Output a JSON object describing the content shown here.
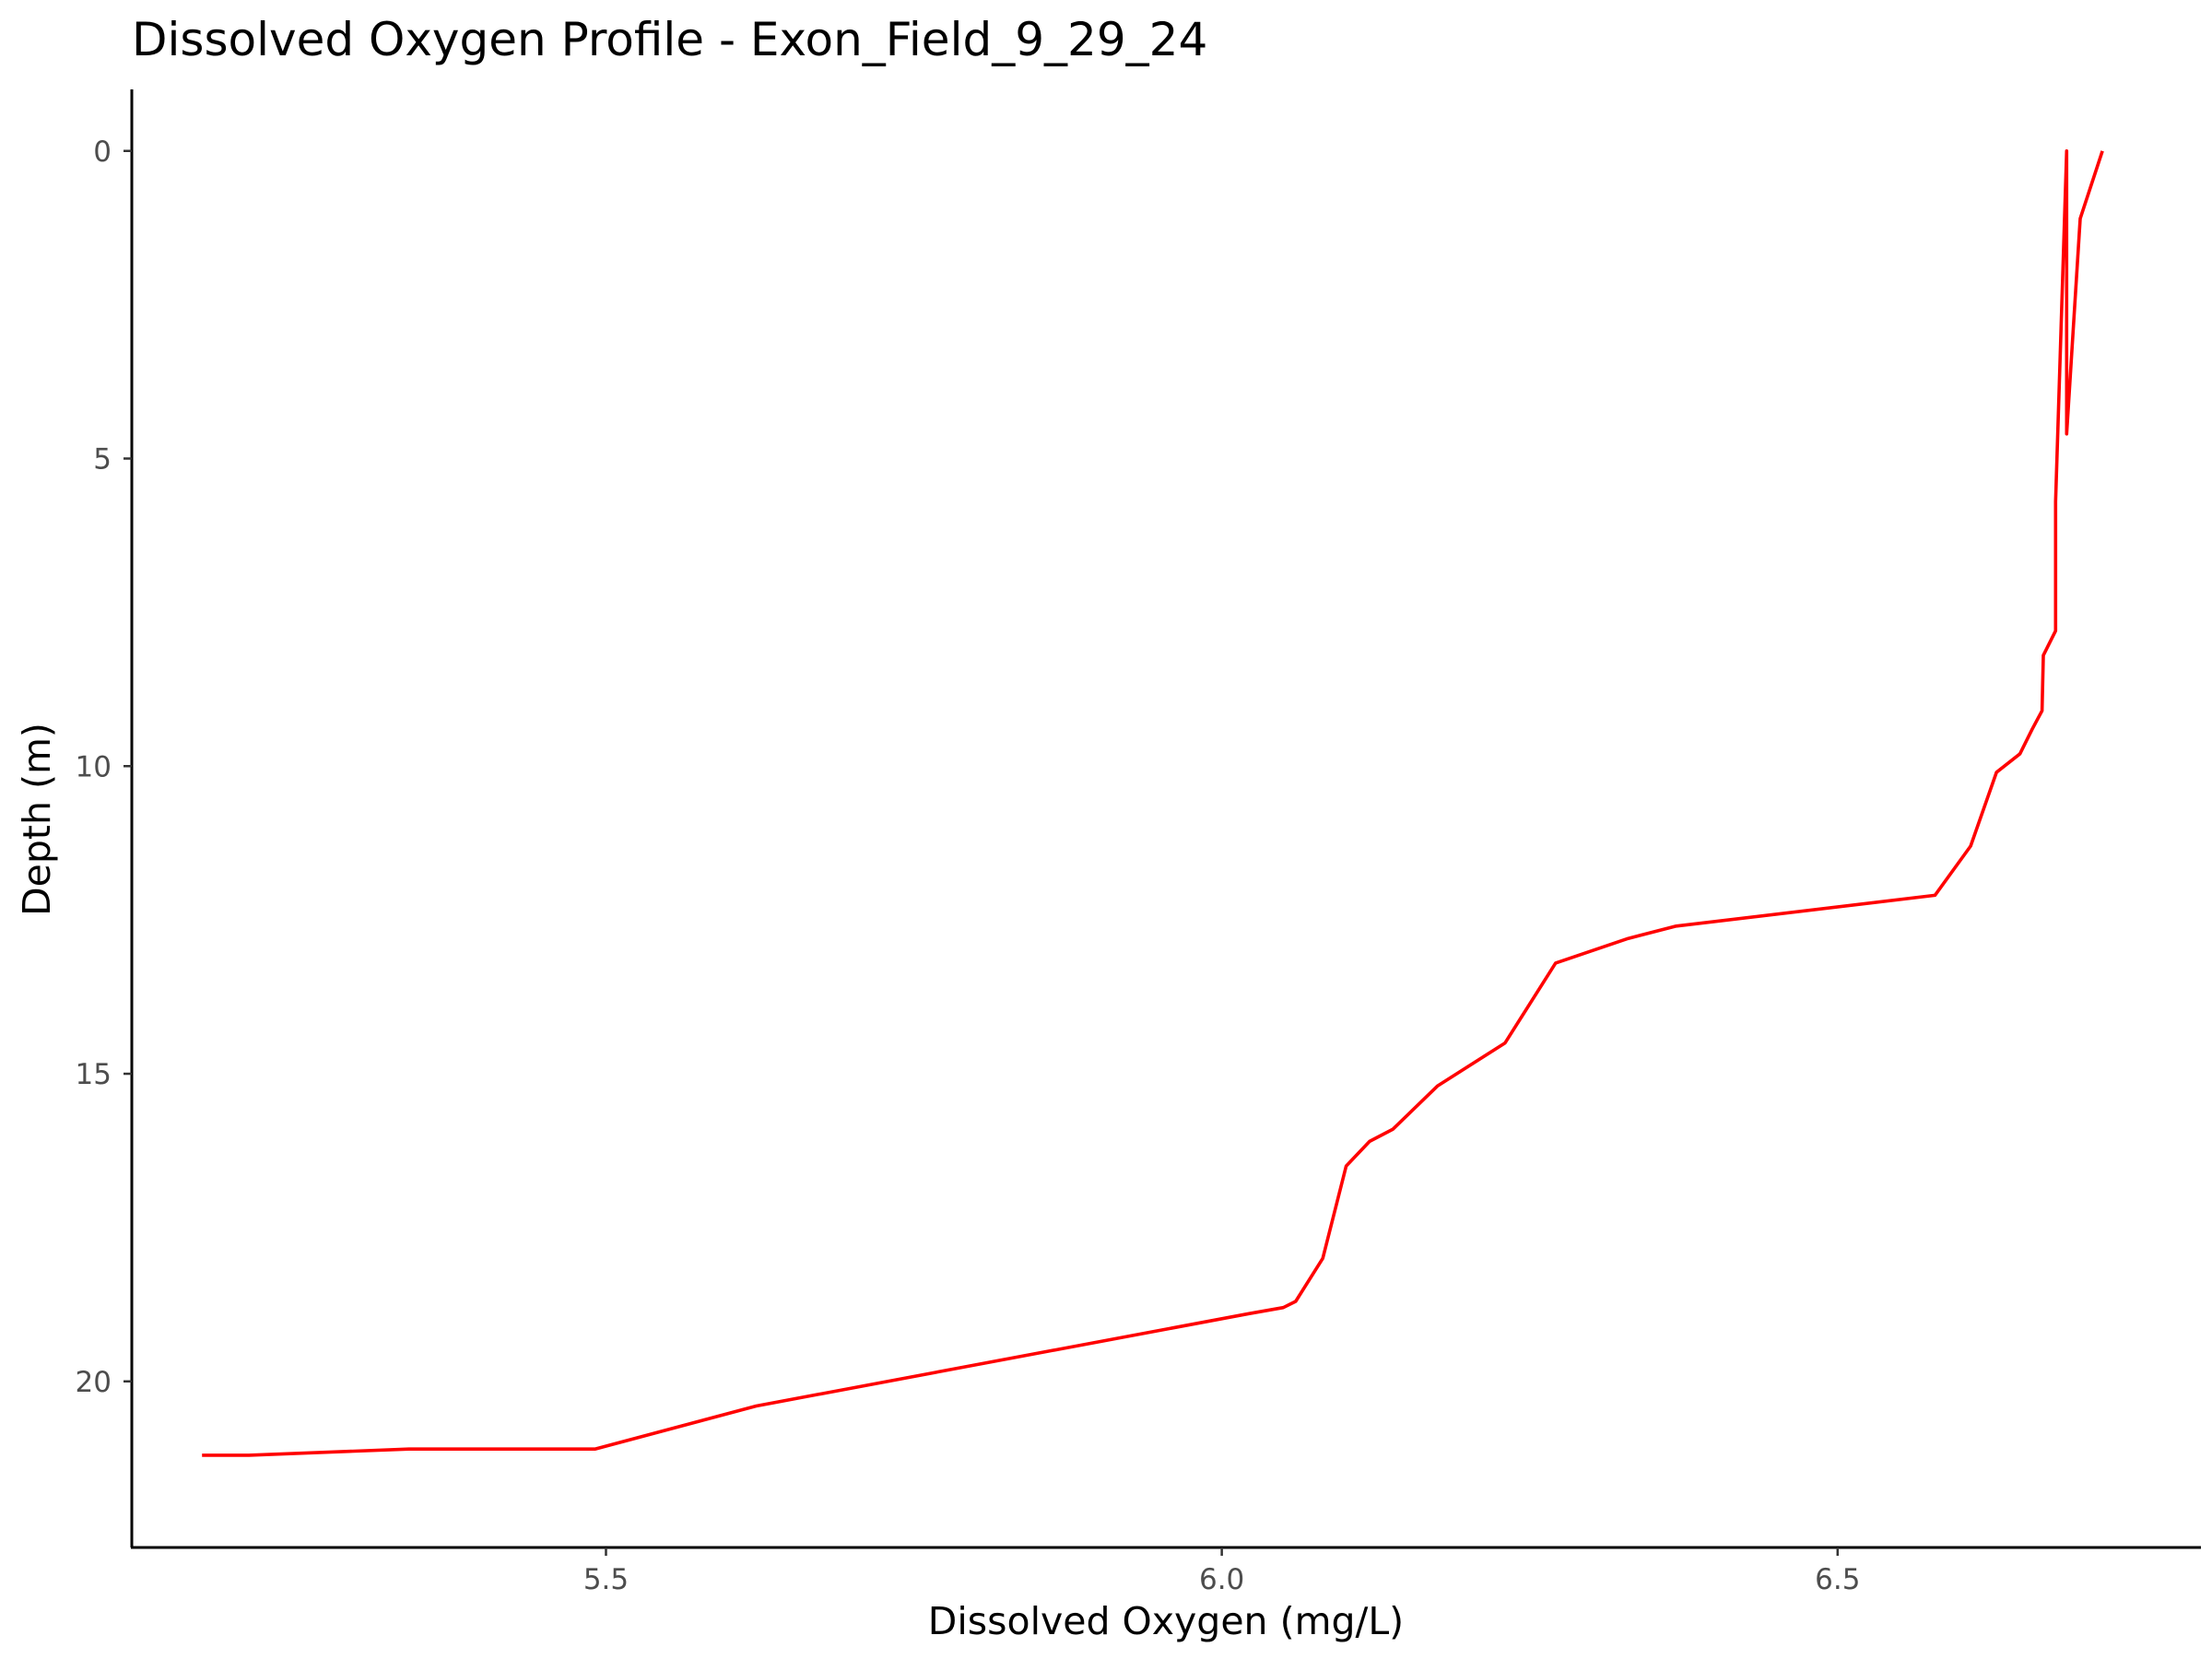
{
  "chart_data": {
    "type": "line",
    "title": "Dissolved Oxygen Profile - Exon_Field_9_29_24",
    "xlabel": "Dissolved Oxygen (mg/L)",
    "ylabel": "Depth (m)",
    "xlim": [
      5.115,
      6.795
    ],
    "ylim": [
      -1.0,
      22.7
    ],
    "y_reversed": true,
    "x_ticks": [
      5.5,
      6.0,
      6.5
    ],
    "x_tick_labels": [
      "5.5",
      "6.0",
      "6.5"
    ],
    "y_ticks": [
      0,
      5,
      10,
      15,
      20
    ],
    "y_tick_labels": [
      "0",
      "5",
      "10",
      "15",
      "20"
    ],
    "grid": false,
    "legend": "none",
    "series": [
      {
        "color": "#ff0000",
        "points": [
          [
            6.715,
            0.0
          ],
          [
            6.697,
            1.1
          ],
          [
            6.686,
            4.6
          ],
          [
            6.686,
            0.0
          ],
          [
            6.677,
            5.7
          ],
          [
            6.677,
            7.8
          ],
          [
            6.667,
            8.2
          ],
          [
            6.666,
            9.1
          ],
          [
            6.658,
            9.4
          ],
          [
            6.648,
            9.8
          ],
          [
            6.629,
            10.1
          ],
          [
            6.608,
            11.3
          ],
          [
            6.579,
            12.1
          ],
          [
            6.369,
            12.6
          ],
          [
            6.33,
            12.8
          ],
          [
            6.271,
            13.2
          ],
          [
            6.23,
            14.5
          ],
          [
            6.175,
            15.2
          ],
          [
            6.139,
            15.9
          ],
          [
            6.12,
            16.1
          ],
          [
            6.101,
            16.5
          ],
          [
            6.082,
            18.0
          ],
          [
            6.06,
            18.7
          ],
          [
            6.05,
            18.8
          ],
          [
            6.022,
            18.9
          ],
          [
            5.622,
            20.4
          ],
          [
            5.491,
            21.1
          ],
          [
            5.418,
            21.1
          ],
          [
            5.34,
            21.1
          ],
          [
            5.21,
            21.2
          ],
          [
            5.172,
            21.2
          ]
        ]
      }
    ]
  }
}
